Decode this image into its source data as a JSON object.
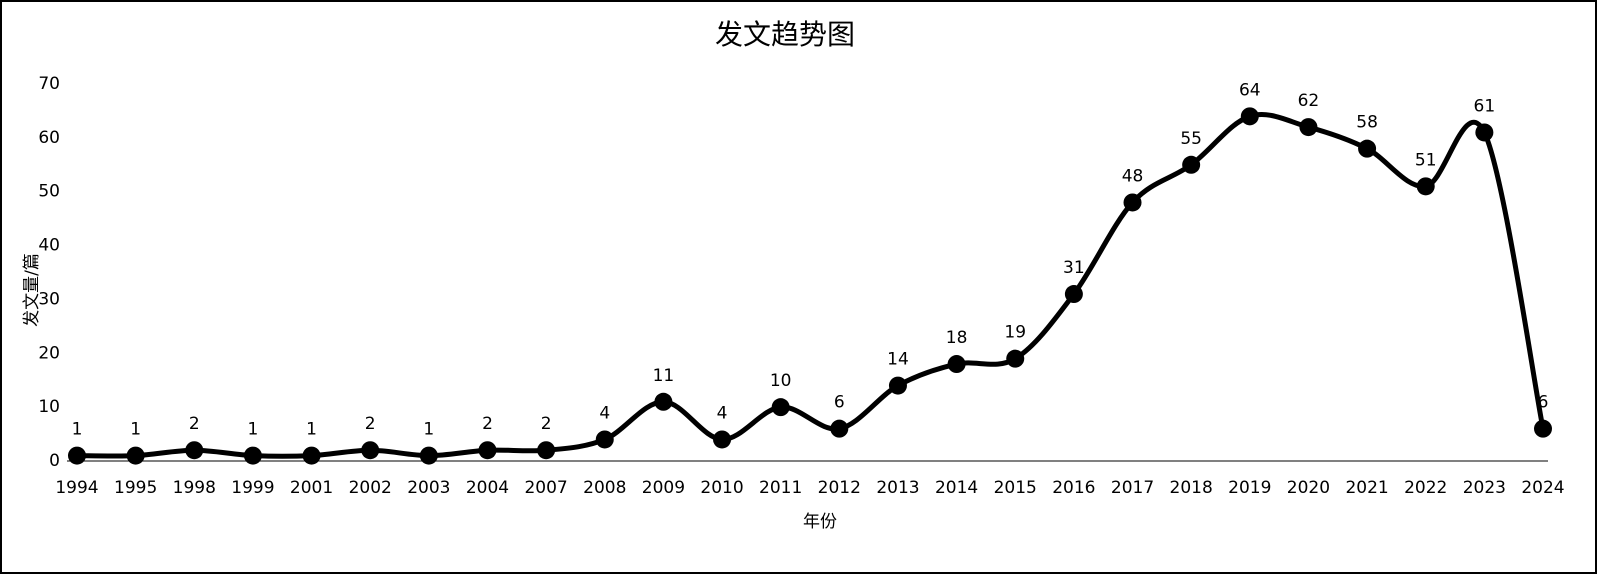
{
  "chart_data": {
    "type": "line",
    "title": "发文趋势图",
    "x_label": "年份",
    "y_label": "发文量/篇",
    "categories": [
      "1994",
      "1995",
      "1998",
      "1999",
      "2001",
      "2002",
      "2003",
      "2004",
      "2007",
      "2008",
      "2009",
      "2010",
      "2011",
      "2012",
      "2013",
      "2014",
      "2015",
      "2016",
      "2017",
      "2018",
      "2019",
      "2020",
      "2021",
      "2022",
      "2023",
      "2024"
    ],
    "series": [
      {
        "name": "发文量",
        "color": "#000000",
        "values": [
          1,
          1,
          2,
          1,
          1,
          2,
          1,
          2,
          2,
          4,
          11,
          4,
          10,
          6,
          14,
          18,
          19,
          31,
          48,
          55,
          64,
          62,
          58,
          51,
          61,
          6
        ]
      }
    ],
    "ylim": [
      0,
      70
    ],
    "yticks": [
      0,
      10,
      20,
      30,
      40,
      50,
      60,
      70
    ],
    "grid": false,
    "smooth": true
  }
}
